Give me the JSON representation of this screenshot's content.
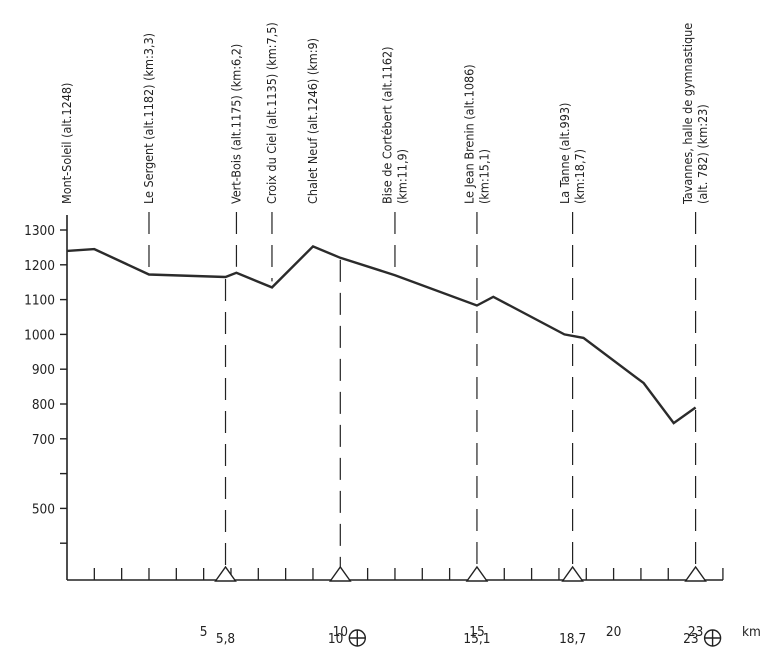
{
  "chart_data": {
    "type": "line",
    "xlabel": "km",
    "ylabel": "",
    "xlim": [
      0,
      25
    ],
    "ylim": [
      200,
      1350
    ],
    "yticks": [
      1300,
      1200,
      1100,
      1000,
      900,
      800,
      700,
      500
    ],
    "yticks_unlabeled": [
      600,
      400
    ],
    "xticks": [
      5,
      10,
      15,
      20,
      23
    ],
    "xticks_minor": [
      1,
      2,
      3,
      4,
      6,
      7,
      8,
      9,
      11,
      12,
      13,
      14,
      16,
      17,
      18,
      19,
      21,
      22,
      24
    ],
    "profile": [
      {
        "km": 0,
        "alt": 1240
      },
      {
        "km": 1,
        "alt": 1245
      },
      {
        "km": 3,
        "alt": 1172
      },
      {
        "km": 5.8,
        "alt": 1165
      },
      {
        "km": 6.2,
        "alt": 1177
      },
      {
        "km": 7.5,
        "alt": 1135
      },
      {
        "km": 9,
        "alt": 1253
      },
      {
        "km": 10,
        "alt": 1220
      },
      {
        "km": 12,
        "alt": 1170
      },
      {
        "km": 15,
        "alt": 1083
      },
      {
        "km": 15.6,
        "alt": 1108
      },
      {
        "km": 18.2,
        "alt": 1000
      },
      {
        "km": 18.9,
        "alt": 990
      },
      {
        "km": 21.1,
        "alt": 860
      },
      {
        "km": 22.2,
        "alt": 745
      },
      {
        "km": 23,
        "alt": 790
      }
    ],
    "waypoints": [
      {
        "km": 0,
        "lines": [
          "Mont-Soleil (alt.1248)"
        ],
        "line": false
      },
      {
        "km": 3,
        "lines": [
          "Le Sergent (alt.1182) (km:3,3)"
        ],
        "line": true,
        "dash_to_axis": false
      },
      {
        "km": 6.2,
        "lines": [
          "Vert-Bois (alt.1175) (km:6,2)"
        ],
        "line": true,
        "dash_to_axis": false
      },
      {
        "km": 7.5,
        "lines": [
          "Croix du Ciel (alt.1135) (km:7,5)"
        ],
        "line": true,
        "dash_to_axis": false
      },
      {
        "km": 9,
        "lines": [
          "Chalet Neuf (alt.1246) (km:9)"
        ],
        "line": false
      },
      {
        "km": 12,
        "lines": [
          "Bise de Cortébert (alt.1162)",
          "(km:11,9)"
        ],
        "line": true,
        "dash_to_axis": false
      },
      {
        "km": 15,
        "lines": [
          "Le Jean Brenin (alt.1086)",
          "(km:15,1)"
        ],
        "line": true,
        "dash_to_axis": true
      },
      {
        "km": 18.5,
        "lines": [
          "La Tanne (alt.993)",
          "(km:18,7)"
        ],
        "line": true,
        "dash_to_axis": true
      },
      {
        "km": 23,
        "lines": [
          "Tavannes, halle de gymnastique",
          "(alt. 782) (km:23)"
        ],
        "line": true,
        "dash_to_axis": true
      }
    ],
    "markers": [
      {
        "km": 5.8,
        "label": "5,8",
        "symbol": false,
        "dash_from_profile": true
      },
      {
        "km": 10,
        "label": "10",
        "symbol": true,
        "dash_from_profile": true
      },
      {
        "km": 15,
        "label": "15,1",
        "symbol": false,
        "dash_from_profile": false
      },
      {
        "km": 18.5,
        "label": "18,7",
        "symbol": false,
        "dash_from_profile": false
      },
      {
        "km": 23,
        "label": "23",
        "symbol": true,
        "dash_from_profile": false
      }
    ]
  }
}
